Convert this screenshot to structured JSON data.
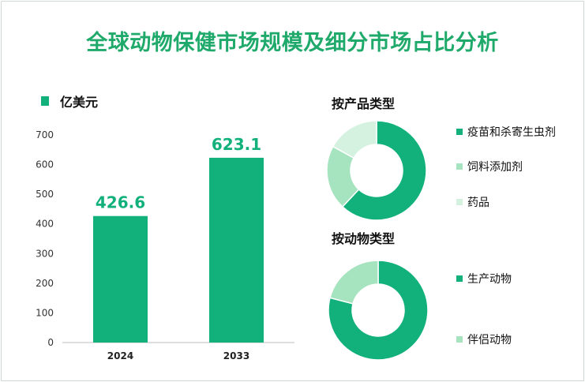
{
  "title": "全球动物保健市场规模及细分市场占比分析",
  "colors": {
    "primary": "#12b17c",
    "secondary": "#a6e3bf",
    "tertiary": "#d4f2df",
    "title": "#1faa6b"
  },
  "chart_data": [
    {
      "type": "bar",
      "legend": "亿美元",
      "categories": [
        "2024",
        "2033"
      ],
      "values": [
        426.6,
        623.1
      ],
      "data_labels": [
        "426.6",
        "623.1"
      ],
      "ylim": [
        0,
        700
      ],
      "yticks": [
        0,
        100,
        200,
        300,
        400,
        500,
        600,
        700
      ],
      "grid": false
    },
    {
      "type": "pie",
      "title": "按产品类型",
      "labels": [
        "疫苗和杀寄生虫剂",
        "饲料添加剂",
        "药品"
      ],
      "values": [
        62,
        21,
        17
      ]
    },
    {
      "type": "pie",
      "title": "按动物类型",
      "labels": [
        "生产动物",
        "伴侣动物"
      ],
      "values": [
        79,
        21
      ]
    }
  ]
}
